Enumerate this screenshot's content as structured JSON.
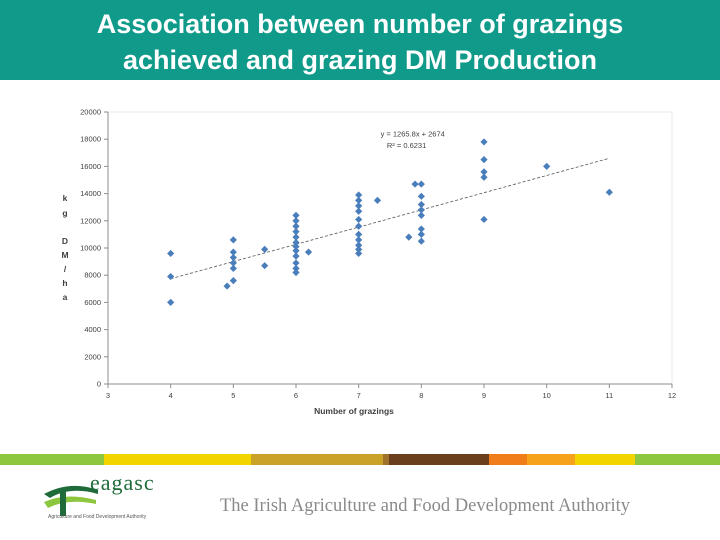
{
  "header": {
    "title_line1": "Association between number of grazings",
    "title_line2": "achieved and grazing DM Production",
    "bg_color": "#0f9a8a"
  },
  "chart_data": {
    "type": "scatter",
    "title": "",
    "xlabel": "Number of grazings",
    "ylabel_chars": [
      "k",
      "g",
      "D",
      "M",
      "/",
      "h",
      "a"
    ],
    "xlim": [
      3,
      12
    ],
    "ylim": [
      0,
      20000
    ],
    "x_ticks": [
      3,
      4,
      5,
      6,
      7,
      8,
      9,
      10,
      11,
      12
    ],
    "y_ticks": [
      0,
      2000,
      4000,
      6000,
      8000,
      10000,
      12000,
      14000,
      16000,
      18000,
      20000
    ],
    "trendline": {
      "slope": 1265.8,
      "intercept": 2674,
      "x_range": [
        4,
        10.98
      ]
    },
    "equation_label": "y = 1265.8x + 2674",
    "r2_label": "R² = 0.6231",
    "marker_color": "#4a7ebb",
    "points": [
      [
        4,
        9600
      ],
      [
        4,
        7900
      ],
      [
        4,
        6000
      ],
      [
        4.9,
        7200
      ],
      [
        5,
        7600
      ],
      [
        5,
        8500
      ],
      [
        5,
        8900
      ],
      [
        5,
        9300
      ],
      [
        5,
        9700
      ],
      [
        5,
        10600
      ],
      [
        5.5,
        9900
      ],
      [
        5.5,
        8700
      ],
      [
        6,
        8200
      ],
      [
        6,
        8500
      ],
      [
        6,
        8900
      ],
      [
        6,
        9400
      ],
      [
        6,
        9800
      ],
      [
        6,
        10100
      ],
      [
        6,
        10400
      ],
      [
        6,
        10800
      ],
      [
        6,
        11200
      ],
      [
        6,
        11600
      ],
      [
        6,
        12000
      ],
      [
        6,
        12400
      ],
      [
        6.2,
        9700
      ],
      [
        7,
        9600
      ],
      [
        7,
        9900
      ],
      [
        7,
        10200
      ],
      [
        7,
        10600
      ],
      [
        7,
        11000
      ],
      [
        7,
        11600
      ],
      [
        7,
        12100
      ],
      [
        7,
        12700
      ],
      [
        7,
        13100
      ],
      [
        7,
        13500
      ],
      [
        7,
        13900
      ],
      [
        7.3,
        13500
      ],
      [
        7.8,
        10800
      ],
      [
        7.9,
        14700
      ],
      [
        8,
        10500
      ],
      [
        8,
        11000
      ],
      [
        8,
        11400
      ],
      [
        8,
        12400
      ],
      [
        8,
        12800
      ],
      [
        8,
        13200
      ],
      [
        8,
        13800
      ],
      [
        8,
        14700
      ],
      [
        9,
        12100
      ],
      [
        9,
        15200
      ],
      [
        9,
        15600
      ],
      [
        9,
        16500
      ],
      [
        9,
        17800
      ],
      [
        10,
        16000
      ],
      [
        11,
        14100
      ]
    ]
  },
  "footer": {
    "stripe_colors": [
      "#8dc63f",
      "#f2d400",
      "#c9a227",
      "#a0732b",
      "#6b3f1d",
      "#f07c1a",
      "#f7a21b",
      "#f2d400",
      "#8dc63f"
    ],
    "logo_text": "eagasc",
    "logo_subtext": "Agriculture and Food Development Authority",
    "tagline": "The Irish Agriculture and Food Development Authority"
  }
}
